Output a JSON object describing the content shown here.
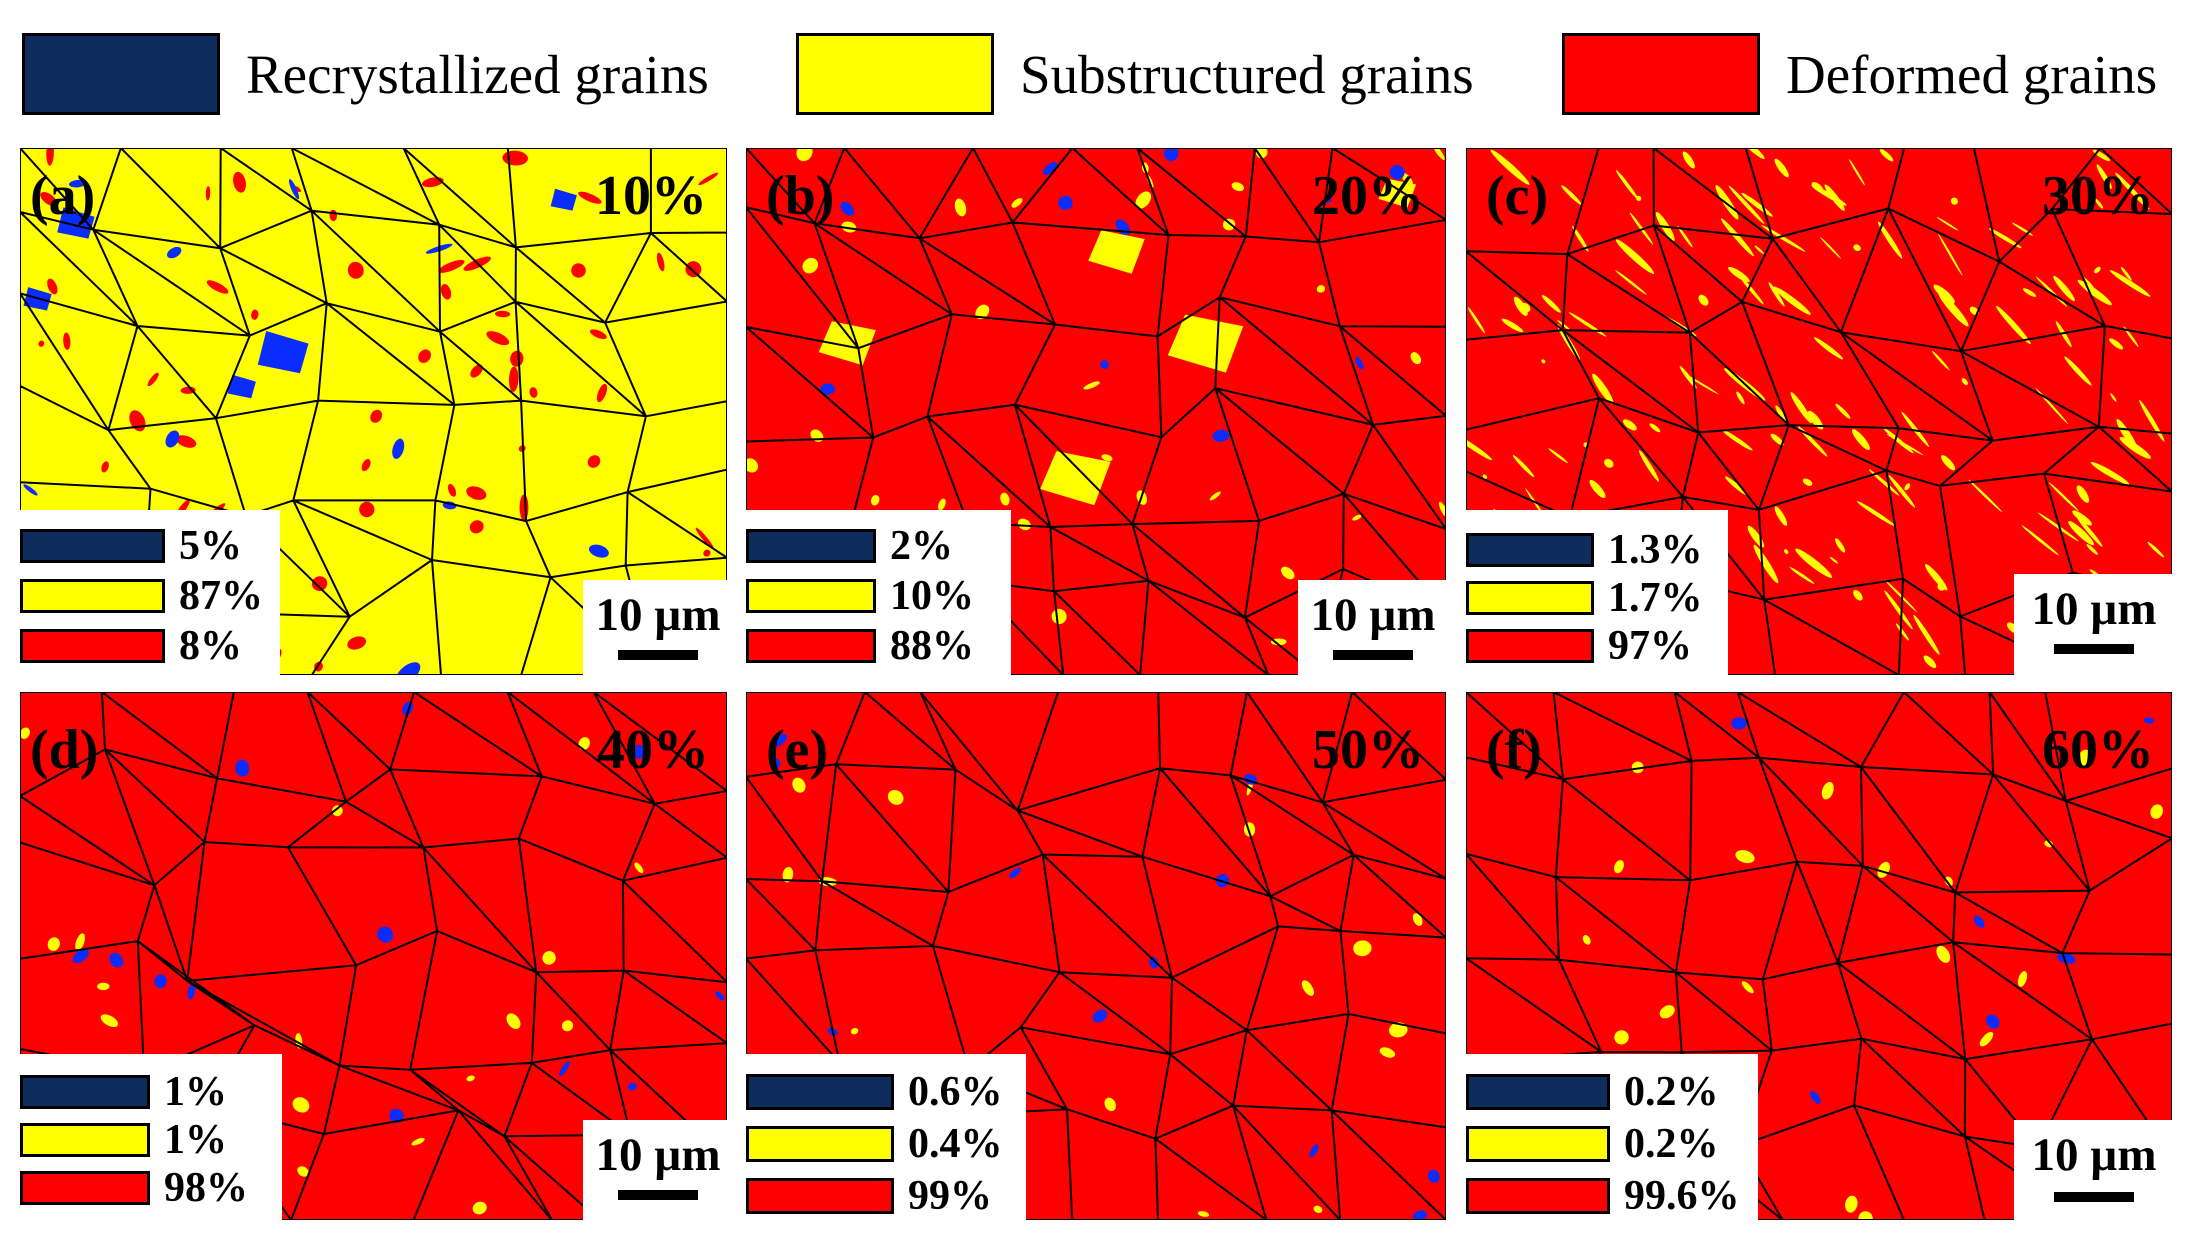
{
  "legend": [
    {
      "label": "Recrystallized grains",
      "color": "#0e2d5e"
    },
    {
      "label": "Substructured grains",
      "color": "#ffff00"
    },
    {
      "label": "Deformed grains",
      "color": "#ff0000"
    }
  ],
  "scale_label": "10 µm",
  "colors": {
    "recrystallized": "#0e2d5e",
    "substructured": "#ffff00",
    "deformed": "#ff0000",
    "map_blue": "#0a2cff",
    "boundary": "#000000"
  },
  "panels": [
    {
      "id": "a",
      "label": "(a)",
      "strain": "10%",
      "dominant": "substructured",
      "fractions": {
        "recrystallized": "5%",
        "substructured": "87%",
        "deformed": "8%"
      }
    },
    {
      "id": "b",
      "label": "(b)",
      "strain": "20%",
      "dominant": "deformed",
      "fractions": {
        "recrystallized": "2%",
        "substructured": "10%",
        "deformed": "88%"
      }
    },
    {
      "id": "c",
      "label": "(c)",
      "strain": "30%",
      "dominant": "deformed",
      "fractions": {
        "recrystallized": "1.3%",
        "substructured": "1.7%",
        "deformed": "97%"
      }
    },
    {
      "id": "d",
      "label": "(d)",
      "strain": "40%",
      "dominant": "deformed",
      "fractions": {
        "recrystallized": "1%",
        "substructured": "1%",
        "deformed": "98%"
      }
    },
    {
      "id": "e",
      "label": "(e)",
      "strain": "50%",
      "dominant": "deformed",
      "fractions": {
        "recrystallized": "0.6%",
        "substructured": "0.4%",
        "deformed": "99%"
      }
    },
    {
      "id": "f",
      "label": "(f)",
      "strain": "60%",
      "dominant": "deformed",
      "fractions": {
        "recrystallized": "0.2%",
        "substructured": "0.2%",
        "deformed": "99.6%"
      }
    }
  ]
}
